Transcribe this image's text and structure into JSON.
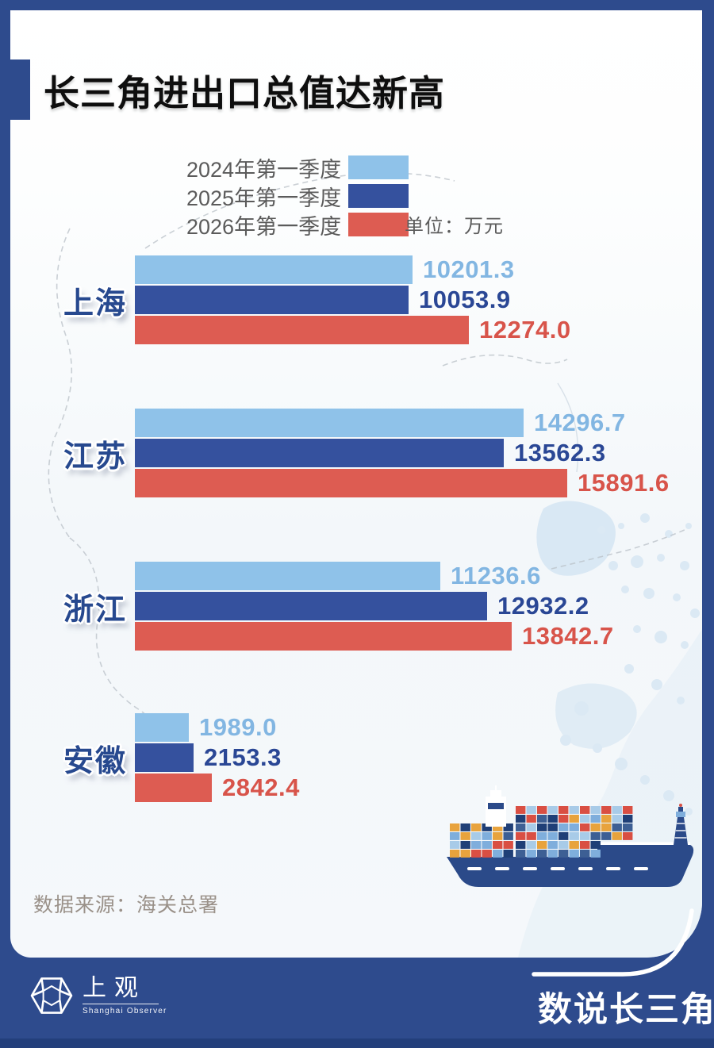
{
  "page": {
    "title": "长三角进出口总值达新高",
    "unit_label": "单位：万元",
    "source": "数据来源：海关总署"
  },
  "legend": [
    {
      "label": "2024年第一季度",
      "color": "#8FC2E9"
    },
    {
      "label": "2025年第一季度",
      "color": "#35519E"
    },
    {
      "label": "2026年第一季度",
      "color": "#DD5C52"
    }
  ],
  "chart_data": {
    "type": "bar",
    "orientation": "horizontal",
    "unit": "万元",
    "title": "长三角进出口总值达新高",
    "categories": [
      "上海",
      "江苏",
      "浙江",
      "安徽"
    ],
    "series": [
      {
        "name": "2024年第一季度",
        "color": "#8FC2E9",
        "label_color": "#82B6E2",
        "values": [
          10201.3,
          14296.7,
          11236.6,
          1989.0
        ],
        "labels": [
          "10201.3",
          "14296.7",
          "11236.6",
          "1989.0"
        ]
      },
      {
        "name": "2025年第一季度",
        "color": "#35519E",
        "label_color": "#2A4795",
        "values": [
          10053.9,
          13562.3,
          12932.2,
          2153.3
        ],
        "labels": [
          "10053.9",
          "13562.3",
          "12932.2",
          "2153.3"
        ]
      },
      {
        "name": "2026年第一季度",
        "color": "#DD5C52",
        "label_color": "#D8544A",
        "values": [
          12274.0,
          15891.6,
          13842.7,
          2842.4
        ],
        "labels": [
          "12274.0",
          "15891.6",
          "13842.7",
          "2842.4"
        ]
      }
    ],
    "xmax": 15891.6,
    "legend_position": "top",
    "grid": false,
    "source": "海关总署"
  },
  "footer": {
    "logo_cn": "上观",
    "logo_en": "Shanghai Observer",
    "series_title": "数说长三角"
  },
  "illustration": {
    "ship": {
      "hull_color": "#2B4A89",
      "container_colors": [
        "#E8A33D",
        "#D94F43",
        "#7FAEDC",
        "#1F3F77",
        "#A8CBE8",
        "#3D5F94"
      ]
    }
  },
  "colors": {
    "frame": "#2E4B8D",
    "bottom_strip": "#233F7B",
    "category_label": "#27498F",
    "legend_text": "#5b5b5b",
    "source_text": "#9a9189"
  }
}
